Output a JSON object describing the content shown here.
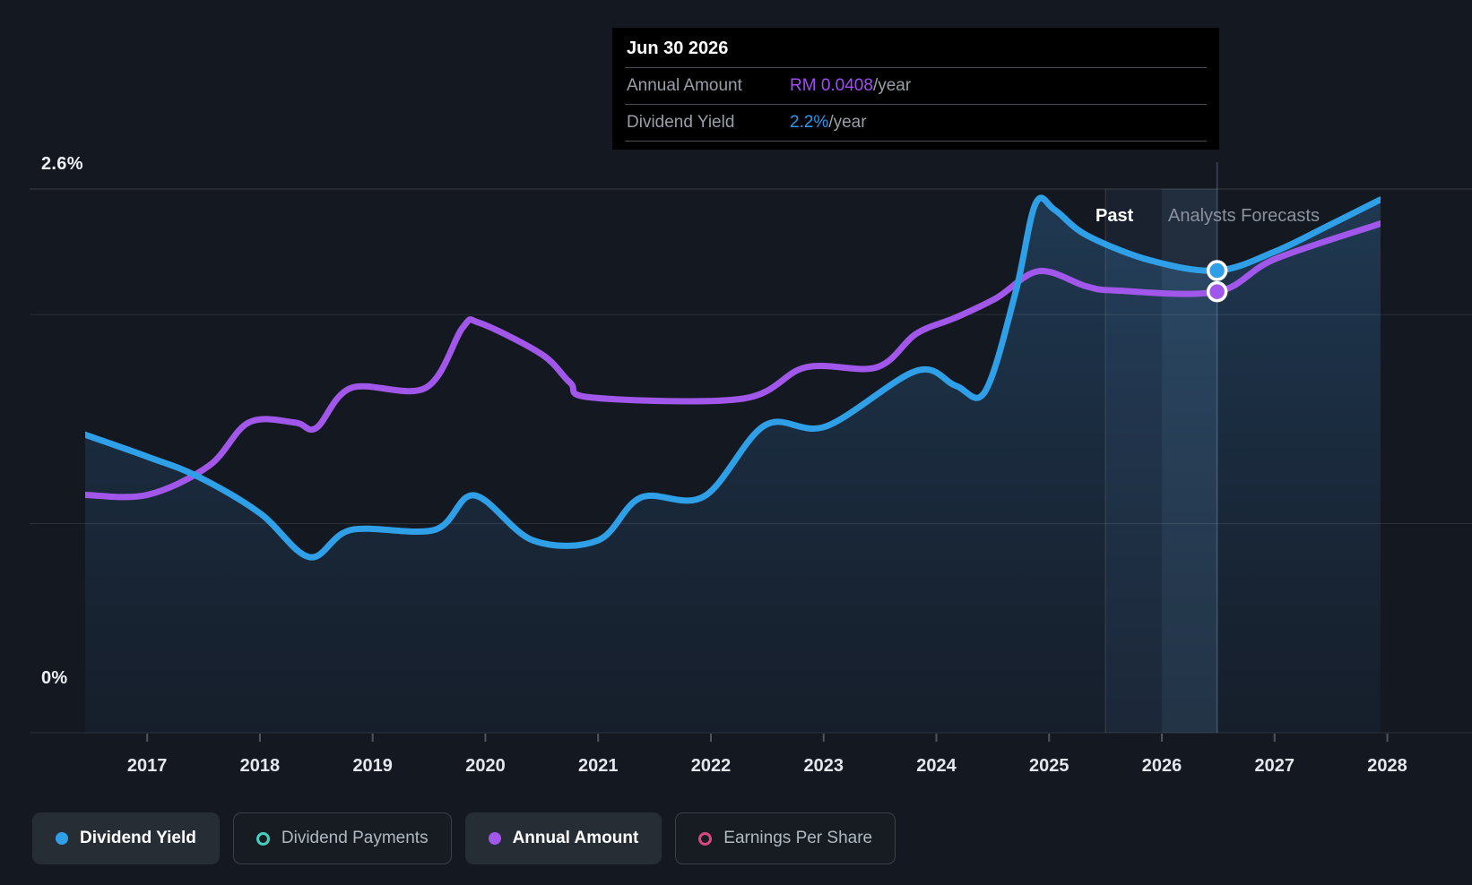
{
  "page": {
    "background": "#141821"
  },
  "tooltip": {
    "date": "Jun 30 2026",
    "rows": [
      {
        "label": "Annual Amount",
        "value": "RM 0.0408",
        "suffix": "/year",
        "value_color": "#a44af8"
      },
      {
        "label": "Dividend Yield",
        "value": "2.2%",
        "suffix": "/year",
        "value_color": "#2b99f0"
      }
    ]
  },
  "chart_annotations": {
    "past_label": "Past",
    "forecast_label": "Analysts Forecasts",
    "y_top_label": "2.6%",
    "y_bottom_label": "0%"
  },
  "legend": [
    {
      "label": "Dividend Yield",
      "color": "#2f9fe8",
      "style": "filled",
      "active": true
    },
    {
      "label": "Dividend Payments",
      "color": "#45cfc1",
      "style": "ring",
      "active": false
    },
    {
      "label": "Annual Amount",
      "color": "#a158ea",
      "style": "filled",
      "active": true
    },
    {
      "label": "Earnings Per Share",
      "color": "#d9487f",
      "style": "ring",
      "active": false
    }
  ],
  "chart_data": {
    "type": "line",
    "x_axis": {
      "min_year": 2016.45,
      "max_year": 2027.94,
      "ticks": [
        2017,
        2018,
        2019,
        2020,
        2021,
        2022,
        2023,
        2024,
        2025,
        2026,
        2027,
        2028
      ]
    },
    "y_axis": {
      "max_pct": 2.6,
      "gridlines_pct": [
        2.6,
        2.0,
        1.0,
        0
      ],
      "top_label": "2.6%",
      "bottom_label": "0%",
      "rm_axis_max": 0.0503
    },
    "past_forecast_divider_year": 2025.5,
    "hover": {
      "year": 2026.49,
      "date": "Jun 30 2026",
      "dividend_yield_pct": 2.21,
      "annual_amount_rm": 0.0408,
      "band_start_year": 2025.5,
      "band_bright_year": 2026.0
    },
    "series": [
      {
        "name": "Dividend Yield",
        "unit": "pct",
        "color": "#2f9fe8",
        "points": [
          [
            2016.45,
            1.425
          ],
          [
            2017.0,
            1.32
          ],
          [
            2017.45,
            1.225
          ],
          [
            2018.0,
            1.05
          ],
          [
            2018.44,
            0.84
          ],
          [
            2018.81,
            0.97
          ],
          [
            2019.55,
            0.97
          ],
          [
            2019.9,
            1.135
          ],
          [
            2020.42,
            0.92
          ],
          [
            2021.0,
            0.92
          ],
          [
            2021.38,
            1.125
          ],
          [
            2021.94,
            1.13
          ],
          [
            2022.48,
            1.47
          ],
          [
            2023.02,
            1.465
          ],
          [
            2023.82,
            1.73
          ],
          [
            2024.17,
            1.66
          ],
          [
            2024.43,
            1.63
          ],
          [
            2024.7,
            2.1
          ],
          [
            2024.88,
            2.53
          ],
          [
            2025.05,
            2.5
          ],
          [
            2025.33,
            2.38
          ],
          [
            2025.89,
            2.26
          ],
          [
            2026.49,
            2.21
          ],
          [
            2027.0,
            2.3
          ],
          [
            2027.46,
            2.42
          ],
          [
            2027.94,
            2.55
          ]
        ]
      },
      {
        "name": "Annual Amount",
        "unit": "rm",
        "color": "#a158ea",
        "points": [
          [
            2016.45,
            0.022
          ],
          [
            2017.0,
            0.022
          ],
          [
            2017.55,
            0.0247
          ],
          [
            2017.9,
            0.0287
          ],
          [
            2018.31,
            0.0287
          ],
          [
            2018.5,
            0.0282
          ],
          [
            2018.81,
            0.0319
          ],
          [
            2019.47,
            0.0319
          ],
          [
            2019.8,
            0.0375
          ],
          [
            2019.95,
            0.0379
          ],
          [
            2020.5,
            0.035
          ],
          [
            2020.75,
            0.0324
          ],
          [
            2020.95,
            0.031
          ],
          [
            2022.28,
            0.0309
          ],
          [
            2022.84,
            0.0338
          ],
          [
            2023.47,
            0.0338
          ],
          [
            2023.82,
            0.0369
          ],
          [
            2024.17,
            0.0384
          ],
          [
            2024.53,
            0.0402
          ],
          [
            2024.91,
            0.0427
          ],
          [
            2025.33,
            0.0413
          ],
          [
            2025.6,
            0.0409
          ],
          [
            2026.49,
            0.0408
          ],
          [
            2027.0,
            0.0438
          ],
          [
            2027.94,
            0.0471
          ]
        ]
      }
    ]
  }
}
